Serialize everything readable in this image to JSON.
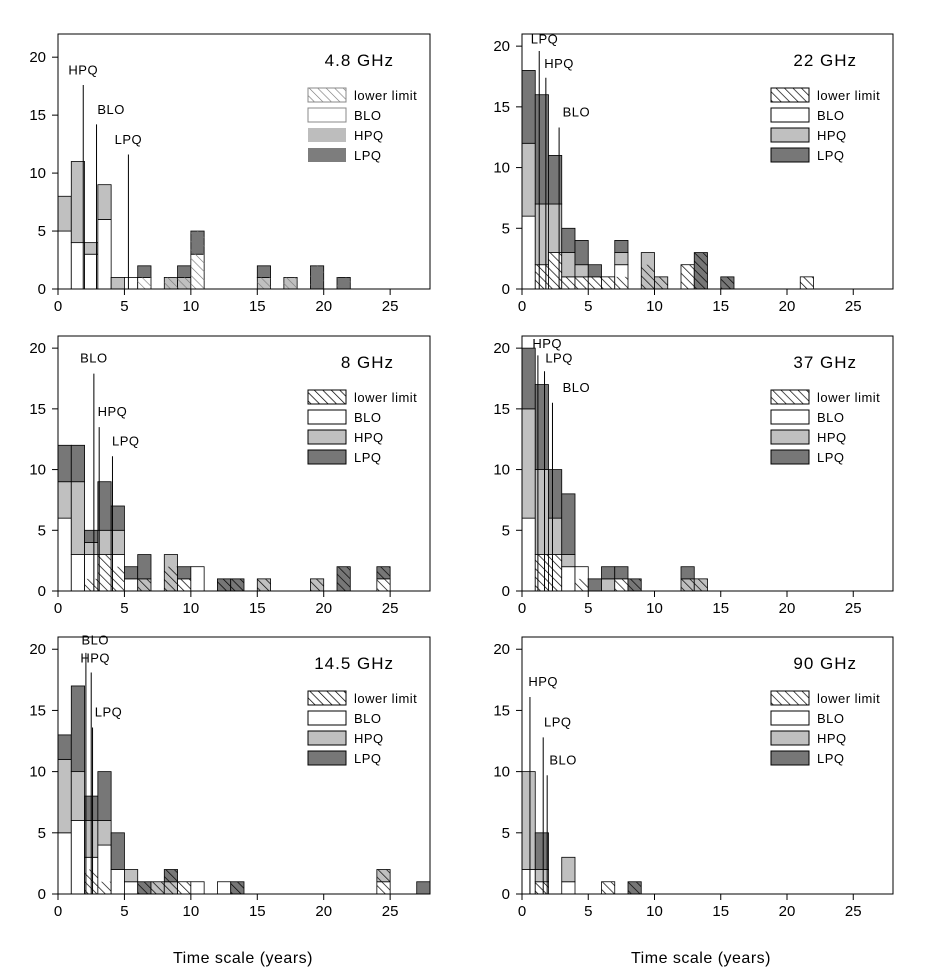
{
  "figure": {
    "xlabel": "Time scale (years)"
  },
  "legend": {
    "items": [
      {
        "key": "lower",
        "label": "lower limit"
      },
      {
        "key": "BLO",
        "label": "BLO"
      },
      {
        "key": "HPQ",
        "label": "HPQ"
      },
      {
        "key": "LPQ",
        "label": "LPQ"
      }
    ]
  },
  "colors": {
    "BLO": "#ffffff",
    "HPQ": "#c0c0c0",
    "LPQ": "#777777",
    "edge": "#000000"
  },
  "chart_data": [
    {
      "type": "bar",
      "subtype": "stacked-histogram",
      "title": "4.8 GHz",
      "bin_width": 1,
      "xlim": [
        0,
        28
      ],
      "ylim": [
        0,
        22
      ],
      "xticks": [
        0,
        5,
        10,
        15,
        20,
        25
      ],
      "yticks": [
        0,
        5,
        10,
        15,
        20
      ],
      "legend_style": "light",
      "bins": [
        {
          "x": 0,
          "BLO": 5,
          "HPQ": 3,
          "LPQ": 0,
          "lower": 0
        },
        {
          "x": 1,
          "BLO": 4,
          "HPQ": 7,
          "LPQ": 0,
          "lower": 0
        },
        {
          "x": 2,
          "BLO": 3,
          "HPQ": 1,
          "LPQ": 0,
          "lower": 0
        },
        {
          "x": 3,
          "BLO": 6,
          "HPQ": 3,
          "LPQ": 0,
          "lower": 0
        },
        {
          "x": 4,
          "BLO": 0,
          "HPQ": 1,
          "LPQ": 0,
          "lower": 0
        },
        {
          "x": 5,
          "BLO": 1,
          "HPQ": 0,
          "LPQ": 0,
          "lower": 0
        },
        {
          "x": 6,
          "BLO": 1,
          "HPQ": 0,
          "LPQ": 1,
          "lower": 1
        },
        {
          "x": 8,
          "BLO": 0,
          "HPQ": 1,
          "LPQ": 0,
          "lower": 1
        },
        {
          "x": 9,
          "BLO": 0,
          "HPQ": 1,
          "LPQ": 1,
          "lower": 1
        },
        {
          "x": 10,
          "BLO": 3,
          "HPQ": 0,
          "LPQ": 2,
          "lower": 5
        },
        {
          "x": 15,
          "BLO": 0,
          "HPQ": 1,
          "LPQ": 1,
          "lower": 1
        },
        {
          "x": 17,
          "BLO": 0,
          "HPQ": 1,
          "LPQ": 0,
          "lower": 1
        },
        {
          "x": 19,
          "BLO": 0,
          "HPQ": 0,
          "LPQ": 2,
          "lower": 2
        },
        {
          "x": 21,
          "BLO": 0,
          "HPQ": 0,
          "LPQ": 1,
          "lower": 1
        }
      ],
      "annotations": [
        {
          "label": "HPQ",
          "x": 1.9,
          "y_top": 17.6,
          "label_y": 18.5,
          "label_x": 1.9
        },
        {
          "label": "BLO",
          "x": 2.9,
          "y_top": 14.2,
          "label_y": 15.1,
          "label_x": 4.0
        },
        {
          "label": "LPQ",
          "x": 5.3,
          "y_top": 11.6,
          "label_y": 12.5,
          "label_x": 5.3
        }
      ]
    },
    {
      "type": "bar",
      "subtype": "stacked-histogram",
      "title": "22 GHz",
      "bin_width": 1,
      "xlim": [
        0,
        28
      ],
      "ylim": [
        0,
        21
      ],
      "xticks": [
        0,
        5,
        10,
        15,
        20,
        25
      ],
      "yticks": [
        0,
        5,
        10,
        15,
        20
      ],
      "legend_style": "dark",
      "bins": [
        {
          "x": 0,
          "BLO": 6,
          "HPQ": 6,
          "LPQ": 6,
          "lower": 0
        },
        {
          "x": 1,
          "BLO": 2,
          "HPQ": 5,
          "LPQ": 9,
          "lower": 2
        },
        {
          "x": 2,
          "BLO": 3,
          "HPQ": 4,
          "LPQ": 4,
          "lower": 3
        },
        {
          "x": 3,
          "BLO": 1,
          "HPQ": 2,
          "LPQ": 2,
          "lower": 1
        },
        {
          "x": 4,
          "BLO": 1,
          "HPQ": 1,
          "LPQ": 2,
          "lower": 1
        },
        {
          "x": 5,
          "BLO": 1,
          "HPQ": 0,
          "LPQ": 1,
          "lower": 1
        },
        {
          "x": 6,
          "BLO": 1,
          "HPQ": 0,
          "LPQ": 0,
          "lower": 1
        },
        {
          "x": 7,
          "BLO": 2,
          "HPQ": 1,
          "LPQ": 1,
          "lower": 1
        },
        {
          "x": 9,
          "BLO": 0,
          "HPQ": 3,
          "LPQ": 0,
          "lower": 2
        },
        {
          "x": 10,
          "BLO": 0,
          "HPQ": 1,
          "LPQ": 0,
          "lower": 1
        },
        {
          "x": 12,
          "BLO": 2,
          "HPQ": 0,
          "LPQ": 0,
          "lower": 2
        },
        {
          "x": 13,
          "BLO": 0,
          "HPQ": 0,
          "LPQ": 3,
          "lower": 3
        },
        {
          "x": 15,
          "BLO": 0,
          "HPQ": 0,
          "LPQ": 1,
          "lower": 1
        },
        {
          "x": 21,
          "BLO": 1,
          "HPQ": 0,
          "LPQ": 0,
          "lower": 1
        }
      ],
      "annotations": [
        {
          "label": "LPQ",
          "x": 1.3,
          "y_top": 19.6,
          "label_y": 20.2,
          "label_x": 1.7
        },
        {
          "label": "HPQ",
          "x": 1.8,
          "y_top": 17.4,
          "label_y": 18.2,
          "label_x": 2.8
        },
        {
          "label": "BLO",
          "x": 2.8,
          "y_top": 13.3,
          "label_y": 14.2,
          "label_x": 4.1
        }
      ]
    },
    {
      "type": "bar",
      "subtype": "stacked-histogram",
      "title": "8 GHz",
      "bin_width": 1,
      "xlim": [
        0,
        28
      ],
      "ylim": [
        0,
        21
      ],
      "xticks": [
        0,
        5,
        10,
        15,
        20,
        25
      ],
      "yticks": [
        0,
        5,
        10,
        15,
        20
      ],
      "legend_style": "dark",
      "bins": [
        {
          "x": 0,
          "BLO": 6,
          "HPQ": 3,
          "LPQ": 3,
          "lower": 0
        },
        {
          "x": 1,
          "BLO": 3,
          "HPQ": 6,
          "LPQ": 3,
          "lower": 0
        },
        {
          "x": 2,
          "BLO": 3,
          "HPQ": 1,
          "LPQ": 1,
          "lower": 1
        },
        {
          "x": 3,
          "BLO": 3,
          "HPQ": 2,
          "LPQ": 4,
          "lower": 3
        },
        {
          "x": 4,
          "BLO": 3,
          "HPQ": 2,
          "LPQ": 2,
          "lower": 2
        },
        {
          "x": 5,
          "BLO": 1,
          "HPQ": 0,
          "LPQ": 1,
          "lower": 0
        },
        {
          "x": 6,
          "BLO": 0,
          "HPQ": 1,
          "LPQ": 2,
          "lower": 1
        },
        {
          "x": 8,
          "BLO": 0,
          "HPQ": 3,
          "LPQ": 0,
          "lower": 2
        },
        {
          "x": 9,
          "BLO": 1,
          "HPQ": 0,
          "LPQ": 1,
          "lower": 1
        },
        {
          "x": 10,
          "BLO": 2,
          "HPQ": 0,
          "LPQ": 0,
          "lower": 0
        },
        {
          "x": 12,
          "BLO": 0,
          "HPQ": 0,
          "LPQ": 1,
          "lower": 1
        },
        {
          "x": 13,
          "BLO": 0,
          "HPQ": 0,
          "LPQ": 1,
          "lower": 1
        },
        {
          "x": 15,
          "BLO": 0,
          "HPQ": 1,
          "LPQ": 0,
          "lower": 1
        },
        {
          "x": 19,
          "BLO": 0,
          "HPQ": 1,
          "LPQ": 0,
          "lower": 1
        },
        {
          "x": 21,
          "BLO": 0,
          "HPQ": 0,
          "LPQ": 2,
          "lower": 2
        },
        {
          "x": 24,
          "BLO": 1,
          "HPQ": 0,
          "LPQ": 1,
          "lower": 2
        }
      ],
      "annotations": [
        {
          "label": "BLO",
          "x": 2.7,
          "y_top": 17.9,
          "label_y": 18.8,
          "label_x": 2.7
        },
        {
          "label": "HPQ",
          "x": 3.1,
          "y_top": 13.5,
          "label_y": 14.4,
          "label_x": 4.1
        },
        {
          "label": "LPQ",
          "x": 4.1,
          "y_top": 11.1,
          "label_y": 12.0,
          "label_x": 5.1
        }
      ]
    },
    {
      "type": "bar",
      "subtype": "stacked-histogram",
      "title": "37 GHz",
      "bin_width": 1,
      "xlim": [
        0,
        28
      ],
      "ylim": [
        0,
        21
      ],
      "xticks": [
        0,
        5,
        10,
        15,
        20,
        25
      ],
      "yticks": [
        0,
        5,
        10,
        15,
        20
      ],
      "legend_style": "dark",
      "bins": [
        {
          "x": 0,
          "BLO": 6,
          "HPQ": 9,
          "LPQ": 5,
          "lower": 0
        },
        {
          "x": 1,
          "BLO": 3,
          "HPQ": 7,
          "LPQ": 7,
          "lower": 3
        },
        {
          "x": 2,
          "BLO": 3,
          "HPQ": 3,
          "LPQ": 4,
          "lower": 3
        },
        {
          "x": 3,
          "BLO": 2,
          "HPQ": 1,
          "LPQ": 5,
          "lower": 0
        },
        {
          "x": 4,
          "BLO": 2,
          "HPQ": 0,
          "LPQ": 0,
          "lower": 1
        },
        {
          "x": 5,
          "BLO": 0,
          "HPQ": 0,
          "LPQ": 1,
          "lower": 0
        },
        {
          "x": 6,
          "BLO": 0,
          "HPQ": 1,
          "LPQ": 1,
          "lower": 0
        },
        {
          "x": 7,
          "BLO": 1,
          "HPQ": 0,
          "LPQ": 1,
          "lower": 1
        },
        {
          "x": 8,
          "BLO": 0,
          "HPQ": 0,
          "LPQ": 1,
          "lower": 1
        },
        {
          "x": 12,
          "BLO": 0,
          "HPQ": 1,
          "LPQ": 1,
          "lower": 1
        },
        {
          "x": 13,
          "BLO": 0,
          "HPQ": 1,
          "LPQ": 0,
          "lower": 1
        }
      ],
      "annotations": [
        {
          "label": "HPQ",
          "x": 1.2,
          "y_top": 19.4,
          "label_y": 20.0,
          "label_x": 1.9
        },
        {
          "label": "LPQ",
          "x": 1.7,
          "y_top": 18.1,
          "label_y": 18.8,
          "label_x": 2.8
        },
        {
          "label": "BLO",
          "x": 2.3,
          "y_top": 15.5,
          "label_y": 16.4,
          "label_x": 4.1
        }
      ]
    },
    {
      "type": "bar",
      "subtype": "stacked-histogram",
      "title": "14.5 GHz",
      "bin_width": 1,
      "xlim": [
        0,
        28
      ],
      "ylim": [
        0,
        21
      ],
      "xticks": [
        0,
        5,
        10,
        15,
        20,
        25
      ],
      "yticks": [
        0,
        5,
        10,
        15,
        20
      ],
      "legend_style": "dark",
      "bins": [
        {
          "x": 0,
          "BLO": 5,
          "HPQ": 6,
          "LPQ": 2,
          "lower": 0
        },
        {
          "x": 1,
          "BLO": 6,
          "HPQ": 4,
          "LPQ": 7,
          "lower": 0
        },
        {
          "x": 2,
          "BLO": 3,
          "HPQ": 3,
          "LPQ": 2,
          "lower": 2
        },
        {
          "x": 3,
          "BLO": 4,
          "HPQ": 2,
          "LPQ": 4,
          "lower": 1
        },
        {
          "x": 4,
          "BLO": 2,
          "HPQ": 0,
          "LPQ": 3,
          "lower": 0
        },
        {
          "x": 5,
          "BLO": 1,
          "HPQ": 1,
          "LPQ": 0,
          "lower": 0
        },
        {
          "x": 6,
          "BLO": 0,
          "HPQ": 0,
          "LPQ": 1,
          "lower": 1
        },
        {
          "x": 7,
          "BLO": 0,
          "HPQ": 1,
          "LPQ": 0,
          "lower": 1
        },
        {
          "x": 8,
          "BLO": 0,
          "HPQ": 1,
          "LPQ": 1,
          "lower": 2
        },
        {
          "x": 9,
          "BLO": 1,
          "HPQ": 0,
          "LPQ": 0,
          "lower": 1
        },
        {
          "x": 10,
          "BLO": 1,
          "HPQ": 0,
          "LPQ": 0,
          "lower": 0
        },
        {
          "x": 12,
          "BLO": 1,
          "HPQ": 0,
          "LPQ": 0,
          "lower": 0
        },
        {
          "x": 13,
          "BLO": 0,
          "HPQ": 0,
          "LPQ": 1,
          "lower": 1
        },
        {
          "x": 24,
          "BLO": 1,
          "HPQ": 1,
          "LPQ": 0,
          "lower": 2
        },
        {
          "x": 27,
          "BLO": 0,
          "HPQ": 0,
          "LPQ": 1,
          "lower": 0
        }
      ],
      "annotations": [
        {
          "label": "BLO",
          "x": 2.1,
          "y_top": 19.7,
          "label_y": 20.4,
          "label_x": 2.8
        },
        {
          "label": "HPQ",
          "x": 2.5,
          "y_top": 18.1,
          "label_y": 18.9,
          "label_x": 2.8
        },
        {
          "label": "LPQ",
          "x": 2.6,
          "y_top": 13.6,
          "label_y": 14.5,
          "label_x": 3.8
        }
      ]
    },
    {
      "type": "bar",
      "subtype": "stacked-histogram",
      "title": "90 GHz",
      "bin_width": 1,
      "xlim": [
        0,
        28
      ],
      "ylim": [
        0,
        21
      ],
      "xticks": [
        0,
        5,
        10,
        15,
        20,
        25
      ],
      "yticks": [
        0,
        5,
        10,
        15,
        20
      ],
      "legend_style": "dark",
      "bins": [
        {
          "x": 0,
          "BLO": 2,
          "HPQ": 8,
          "LPQ": 0,
          "lower": 0
        },
        {
          "x": 1,
          "BLO": 1,
          "HPQ": 1,
          "LPQ": 3,
          "lower": 1
        },
        {
          "x": 2,
          "BLO": 0,
          "HPQ": 0,
          "LPQ": 0,
          "lower": 0
        },
        {
          "x": 3,
          "BLO": 1,
          "HPQ": 2,
          "LPQ": 0,
          "lower": 0
        },
        {
          "x": 6,
          "BLO": 1,
          "HPQ": 0,
          "LPQ": 0,
          "lower": 1
        },
        {
          "x": 8,
          "BLO": 0,
          "HPQ": 0,
          "LPQ": 1,
          "lower": 1
        }
      ],
      "annotations": [
        {
          "label": "HPQ",
          "x": 0.6,
          "y_top": 16.1,
          "label_y": 17.0,
          "label_x": 1.6
        },
        {
          "label": "LPQ",
          "x": 1.6,
          "y_top": 12.8,
          "label_y": 13.7,
          "label_x": 2.7
        },
        {
          "label": "BLO",
          "x": 1.9,
          "y_top": 9.7,
          "label_y": 10.6,
          "label_x": 3.1
        }
      ]
    }
  ]
}
